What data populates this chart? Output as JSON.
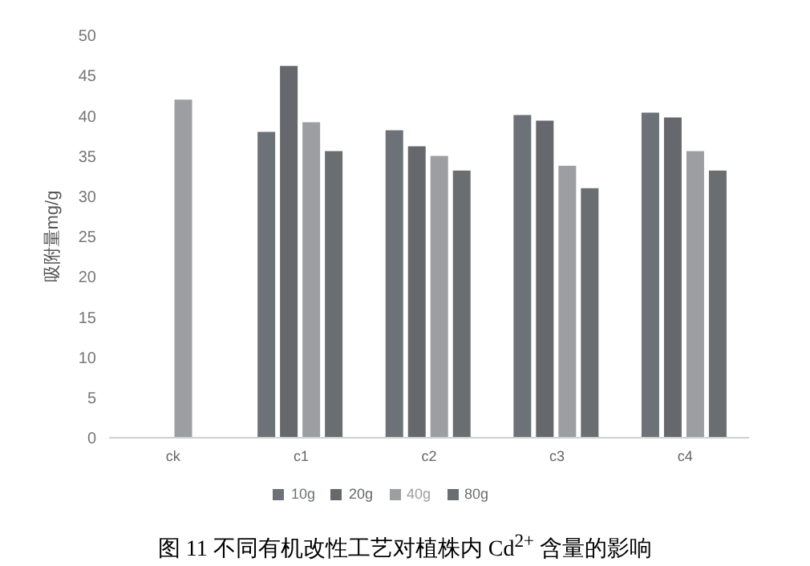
{
  "chart_data": {
    "type": "bar",
    "title": "图 11 不同有机改性工艺对植株内 Cd$^{2+}$ 含量的影响",
    "ylabel": "吸附量mg/g",
    "categories": [
      "ck",
      "c1",
      "c2",
      "c3",
      "c4"
    ],
    "series": [
      {
        "name": "10g",
        "color": "#6d7278",
        "values": [
          null,
          38,
          38.2,
          40.1,
          40.4
        ]
      },
      {
        "name": "20g",
        "color": "#66686e",
        "values": [
          null,
          46.2,
          36.2,
          39.4,
          39.8
        ]
      },
      {
        "name": "40g",
        "color": "#9d9ea2",
        "values": [
          42,
          39.2,
          35,
          33.8,
          35.6
        ]
      },
      {
        "name": "80g",
        "color": "#6b6e71",
        "values": [
          null,
          35.6,
          33.2,
          31,
          33.2
        ]
      }
    ],
    "ylim": [
      0,
      50
    ],
    "yticks": [
      0,
      5,
      10,
      15,
      20,
      25,
      30,
      35,
      40,
      45,
      50
    ],
    "grid": false,
    "legend": "bottom"
  }
}
